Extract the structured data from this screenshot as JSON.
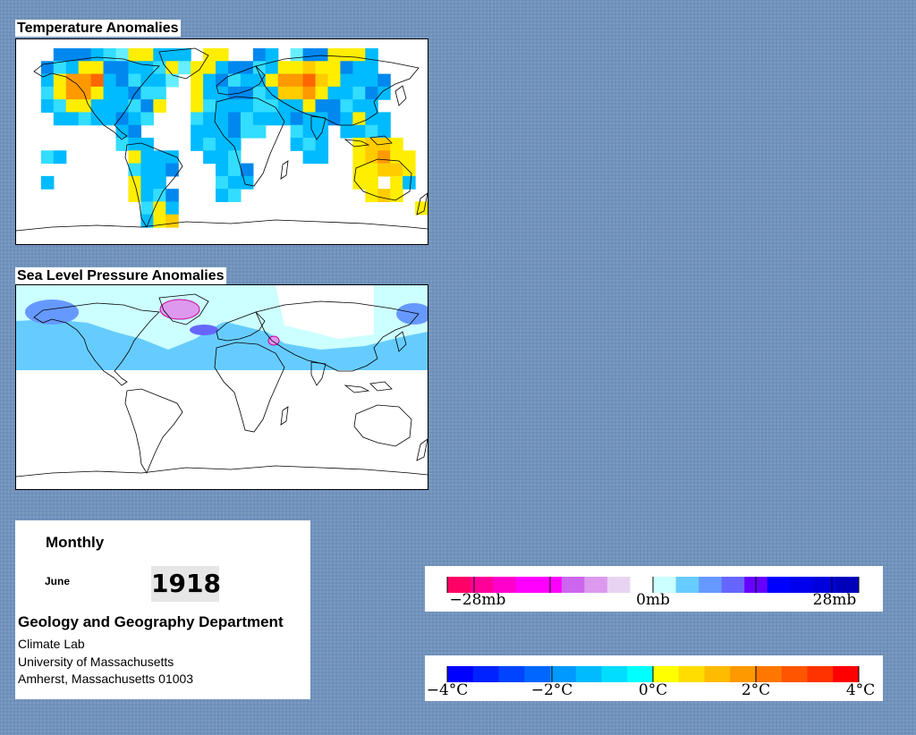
{
  "temperature_map": {
    "title": "Temperature Anomalies"
  },
  "pressure_map": {
    "title": "Sea Level Pressure Anomalies"
  },
  "info": {
    "period": "Monthly",
    "month": "June",
    "year": "1918",
    "department": "Geology and Geography Department",
    "lab": "Climate Lab",
    "university": "University of Massachusetts",
    "address": "Amherst, Massachusetts 01003"
  },
  "pressure_legend": {
    "colors": [
      "#ff0066",
      "#ff0099",
      "#ff00cc",
      "#ff00ff",
      "#ff00ff",
      "#cc66ee",
      "#dd99ee",
      "#e8d4f2",
      "#ffffff",
      "#ccffff",
      "#66ccff",
      "#6699ff",
      "#6666ff",
      "#6600ff",
      "#0000ff",
      "#0000ee",
      "#0000dd",
      "#0000bb"
    ],
    "labels": [
      "−28mb",
      "0mb",
      "28mb"
    ]
  },
  "temperature_legend": {
    "colors": [
      "#0000ff",
      "#0022ff",
      "#0044ff",
      "#0066ff",
      "#0099ff",
      "#00bbff",
      "#00ddff",
      "#00ffff",
      "#ffff00",
      "#ffdd00",
      "#ffbb00",
      "#ff9900",
      "#ff7700",
      "#ff5500",
      "#ff3300",
      "#ff0000"
    ],
    "labels": [
      "−4°C",
      "−2°C",
      "0°C",
      "2°C",
      "4°C"
    ]
  }
}
